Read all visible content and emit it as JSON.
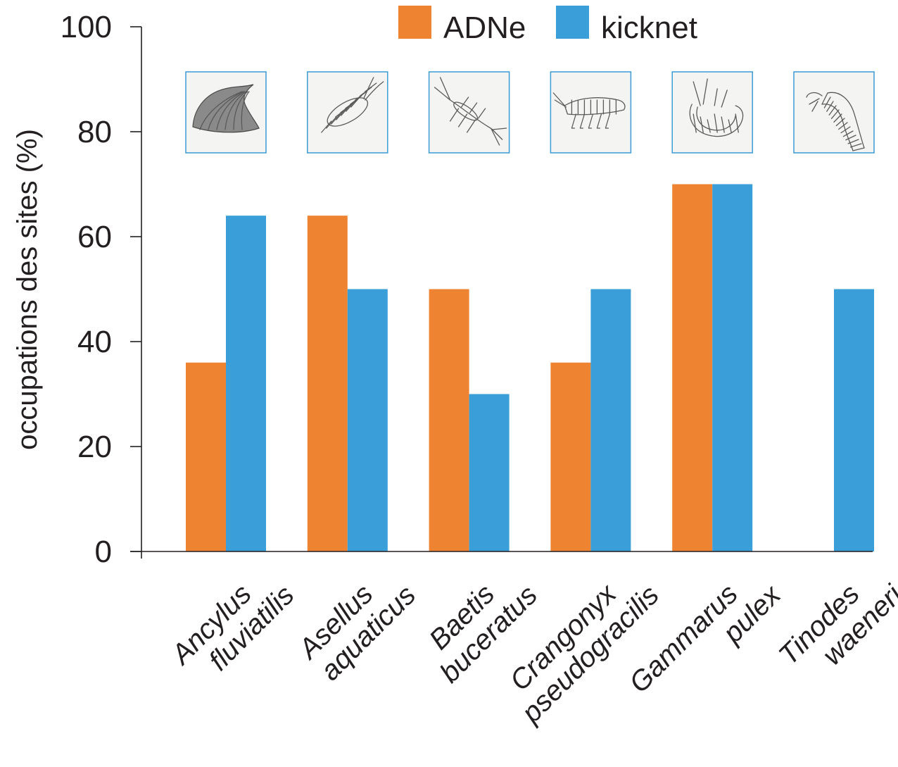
{
  "chart_data": {
    "type": "bar",
    "ylabel": "occupations des sites (%)",
    "ylim": [
      0,
      100
    ],
    "yticks": [
      0,
      20,
      40,
      60,
      80,
      100
    ],
    "categories": [
      [
        "Ancylus",
        "fluviatilis"
      ],
      [
        "Asellus",
        "aquaticus"
      ],
      [
        "Baetis",
        "buceratus"
      ],
      [
        "Crangonyx",
        "pseudogracilis"
      ],
      [
        "Gammarus",
        "pulex"
      ],
      [
        "Tinodes",
        "waeneri"
      ]
    ],
    "series": [
      {
        "name": "ADNe",
        "color": "#ee8431",
        "values": [
          36,
          64,
          50,
          36,
          70,
          0
        ]
      },
      {
        "name": "kicknet",
        "color": "#3a9ed8",
        "values": [
          64,
          50,
          30,
          50,
          70,
          50
        ]
      }
    ],
    "legend_position": "top",
    "grid": false,
    "thumbnails": [
      "limpet-shell-icon",
      "isopod-icon",
      "mayfly-nymph-icon",
      "amphipod-icon",
      "gammarus-icon",
      "caddisfly-larva-icon"
    ]
  }
}
